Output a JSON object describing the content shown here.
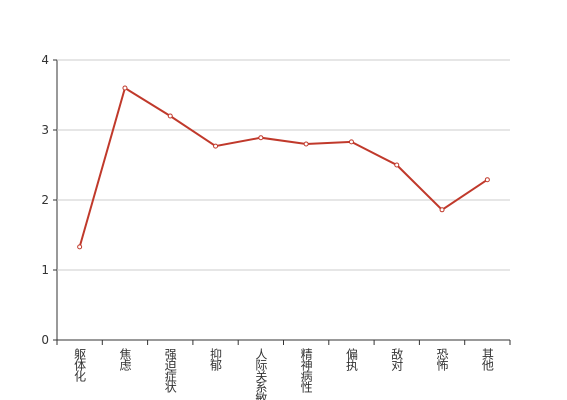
{
  "chart_data": {
    "type": "line",
    "categories": [
      "躯体化",
      "焦虑",
      "强迫症状",
      "抑郁",
      "人际关系敏感",
      "精神病性",
      "偏执",
      "敌对",
      "恐怖",
      "其他"
    ],
    "series": [
      {
        "color": "#c0392b",
        "values": [
          1.33,
          3.6,
          3.2,
          2.77,
          2.89,
          2.8,
          2.83,
          2.5,
          1.86,
          2.29
        ]
      }
    ],
    "ylim": [
      0,
      4
    ],
    "yticks": [
      0,
      1,
      2,
      3,
      4
    ],
    "grid": true
  }
}
